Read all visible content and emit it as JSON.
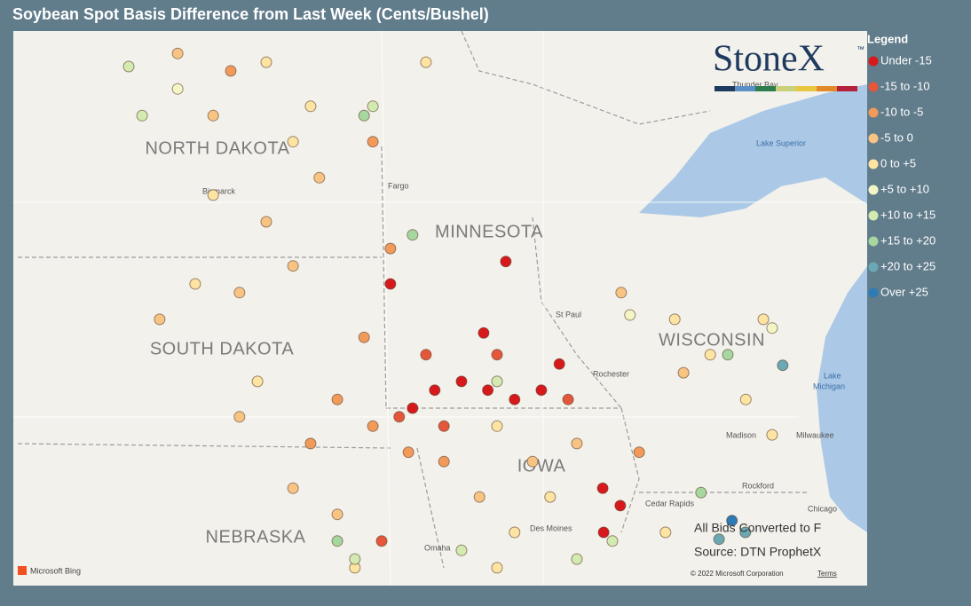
{
  "header": {
    "title": "Soybean Spot Basis Difference from Last Week (Cents/Bushel)"
  },
  "logo": {
    "text": "StoneX",
    "mark": "™"
  },
  "legend": {
    "title": "Legend",
    "bins": [
      {
        "label": "Under -15",
        "color": "#d7191c"
      },
      {
        "label": "-15 to -10",
        "color": "#e4573a"
      },
      {
        "label": "-10 to -5",
        "color": "#f29a5a"
      },
      {
        "label": "-5 to 0",
        "color": "#f8c484"
      },
      {
        "label": "0 to +5",
        "color": "#fde4a2"
      },
      {
        "label": "+5 to +10",
        "color": "#f3f6c4"
      },
      {
        "label": "+10 to +15",
        "color": "#d3ebb0"
      },
      {
        "label": "+15 to +20",
        "color": "#a6d79f"
      },
      {
        "label": "+20 to +25",
        "color": "#6aa9b3"
      },
      {
        "label": "Over +25",
        "color": "#2c7bb6"
      }
    ]
  },
  "map": {
    "states": [
      "NORTH DAKOTA",
      "SOUTH DAKOTA",
      "NEBRASKA",
      "MINNESOTA",
      "WISCONSIN",
      "IOWA"
    ],
    "cities": [
      "Bismarck",
      "Fargo",
      "St Paul",
      "Rochester",
      "Madison",
      "Milwaukee",
      "Rockford",
      "Chicago",
      "Cedar Rapids",
      "Des Moines",
      "Omaha",
      "Thunder Bay"
    ],
    "lakes": [
      "Lake Superior",
      "Lake",
      "Michigan"
    ],
    "points": [
      [
        -95.92,
        43.45,
        0
      ],
      [
        -95.44,
        43.74,
        0
      ],
      [
        -94.86,
        43.88,
        0
      ],
      [
        -94.29,
        43.74,
        0
      ],
      [
        -93.71,
        43.59,
        0
      ],
      [
        -93.13,
        43.74,
        0
      ],
      [
        -92.74,
        44.16,
        0
      ],
      [
        -94.38,
        44.66,
        0
      ],
      [
        -93.9,
        45.81,
        0
      ],
      [
        -96.4,
        45.45,
        0
      ],
      [
        -91.8,
        42.16,
        0
      ],
      [
        -91.42,
        41.88,
        0
      ],
      [
        -91.78,
        41.45,
        0
      ],
      [
        -96.21,
        43.31,
        1
      ],
      [
        -95.63,
        44.31,
        1
      ],
      [
        -95.24,
        43.16,
        1
      ],
      [
        -94.09,
        44.31,
        1
      ],
      [
        -92.55,
        43.59,
        1
      ],
      [
        -96.59,
        41.31,
        1
      ],
      [
        -96.97,
        44.59,
        2
      ],
      [
        -96.78,
        43.16,
        2
      ],
      [
        -96.01,
        42.74,
        2
      ],
      [
        -95.24,
        42.59,
        2
      ],
      [
        -96.4,
        46.02,
        2
      ],
      [
        -97.55,
        43.59,
        2
      ],
      [
        -98.13,
        42.88,
        2
      ],
      [
        -91.01,
        42.74,
        2
      ],
      [
        -96.78,
        47.74,
        2
      ],
      [
        -99.86,
        48.88,
        2
      ],
      [
        -98.51,
        45.74,
        3
      ],
      [
        -99.67,
        45.31,
        3
      ],
      [
        -99.09,
        46.45,
        3
      ],
      [
        -97.94,
        47.16,
        3
      ],
      [
        -101.01,
        49.16,
        3
      ],
      [
        -100.24,
        48.16,
        3
      ],
      [
        -101.4,
        44.88,
        3
      ],
      [
        -99.67,
        43.31,
        3
      ],
      [
        -98.51,
        42.16,
        3
      ],
      [
        -97.55,
        41.74,
        3
      ],
      [
        -94.47,
        42.02,
        3
      ],
      [
        -93.32,
        42.59,
        3
      ],
      [
        -92.36,
        42.88,
        3
      ],
      [
        -91.4,
        45.31,
        3
      ],
      [
        -90.05,
        44.02,
        3
      ],
      [
        -99.09,
        49.02,
        4
      ],
      [
        -98.13,
        48.31,
        4
      ],
      [
        -95.63,
        49.02,
        4
      ],
      [
        -98.51,
        47.74,
        4
      ],
      [
        -100.24,
        46.88,
        4
      ],
      [
        -100.63,
        45.45,
        4
      ],
      [
        -99.28,
        43.88,
        4
      ],
      [
        -94.09,
        43.16,
        4
      ],
      [
        -92.94,
        42.02,
        4
      ],
      [
        -93.71,
        41.45,
        4
      ],
      [
        -90.24,
        44.88,
        4
      ],
      [
        -89.47,
        44.31,
        4
      ],
      [
        -88.7,
        43.59,
        4
      ],
      [
        -88.32,
        44.88,
        4
      ],
      [
        -88.13,
        43.02,
        4
      ],
      [
        -90.44,
        41.45,
        4
      ],
      [
        -97.17,
        40.88,
        4
      ],
      [
        -94.09,
        40.88,
        4
      ],
      [
        -101.01,
        48.59,
        5
      ],
      [
        -91.21,
        44.95,
        5
      ],
      [
        -88.13,
        44.74,
        5
      ],
      [
        -101.78,
        48.16,
        6
      ],
      [
        -102.07,
        48.95,
        6
      ],
      [
        -96.78,
        48.31,
        6
      ],
      [
        -97.17,
        41.02,
        6
      ],
      [
        -94.86,
        41.16,
        6
      ],
      [
        -94.09,
        43.88,
        6
      ],
      [
        -91.59,
        41.31,
        6
      ],
      [
        -92.36,
        41.02,
        6
      ],
      [
        -96.97,
        48.16,
        7
      ],
      [
        -95.92,
        46.24,
        7
      ],
      [
        -97.55,
        41.31,
        7
      ],
      [
        -89.09,
        44.31,
        7
      ],
      [
        -89.67,
        42.09,
        7
      ],
      [
        -87.9,
        44.14,
        8
      ],
      [
        -89.28,
        41.34,
        8
      ],
      [
        -88.71,
        41.45,
        8
      ],
      [
        -89.0,
        41.64,
        9
      ]
    ]
  },
  "notes": [
    "All Bids Converted to F",
    "Source: DTN ProphetX"
  ],
  "footer": {
    "bing": "Microsoft Bing",
    "copyright": "© 2022 Microsoft Corporation",
    "terms": "Terms"
  }
}
